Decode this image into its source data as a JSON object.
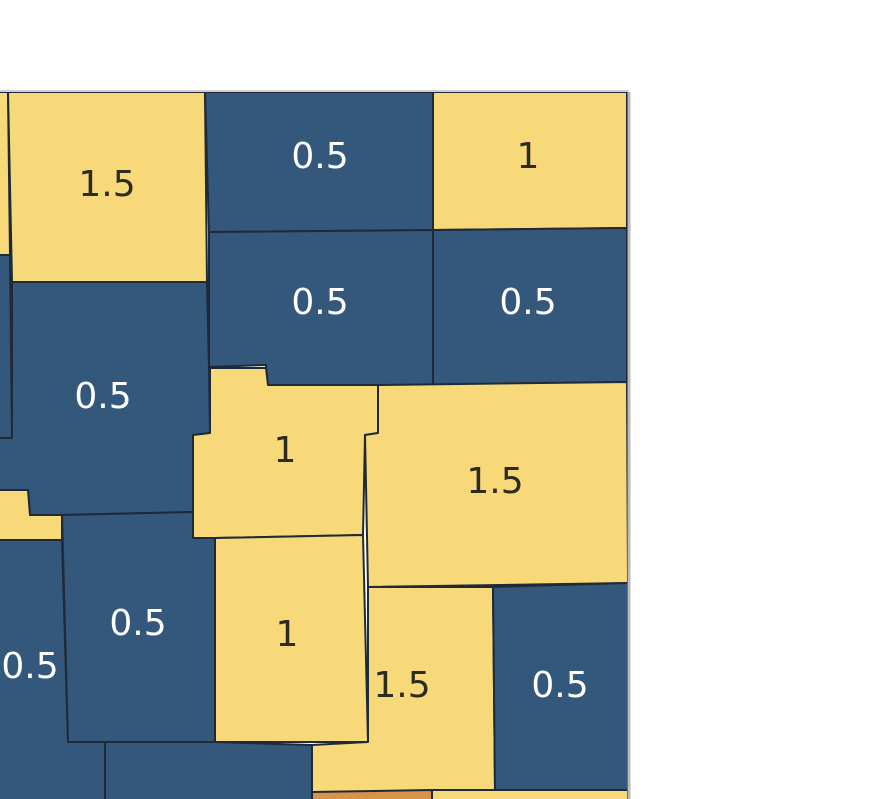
{
  "regions": [
    {
      "label": "1.5"
    },
    {
      "label": "0.5"
    },
    {
      "label": "1"
    },
    {
      "label": "0.5"
    },
    {
      "label": "0.5"
    },
    {
      "label": "0.5"
    },
    {
      "label": "1"
    },
    {
      "label": "1.5"
    },
    {
      "label": "0.5"
    },
    {
      "label": "0.5"
    },
    {
      "label": "1"
    },
    {
      "label": "1.5"
    },
    {
      "label": "0.5"
    }
  ]
}
